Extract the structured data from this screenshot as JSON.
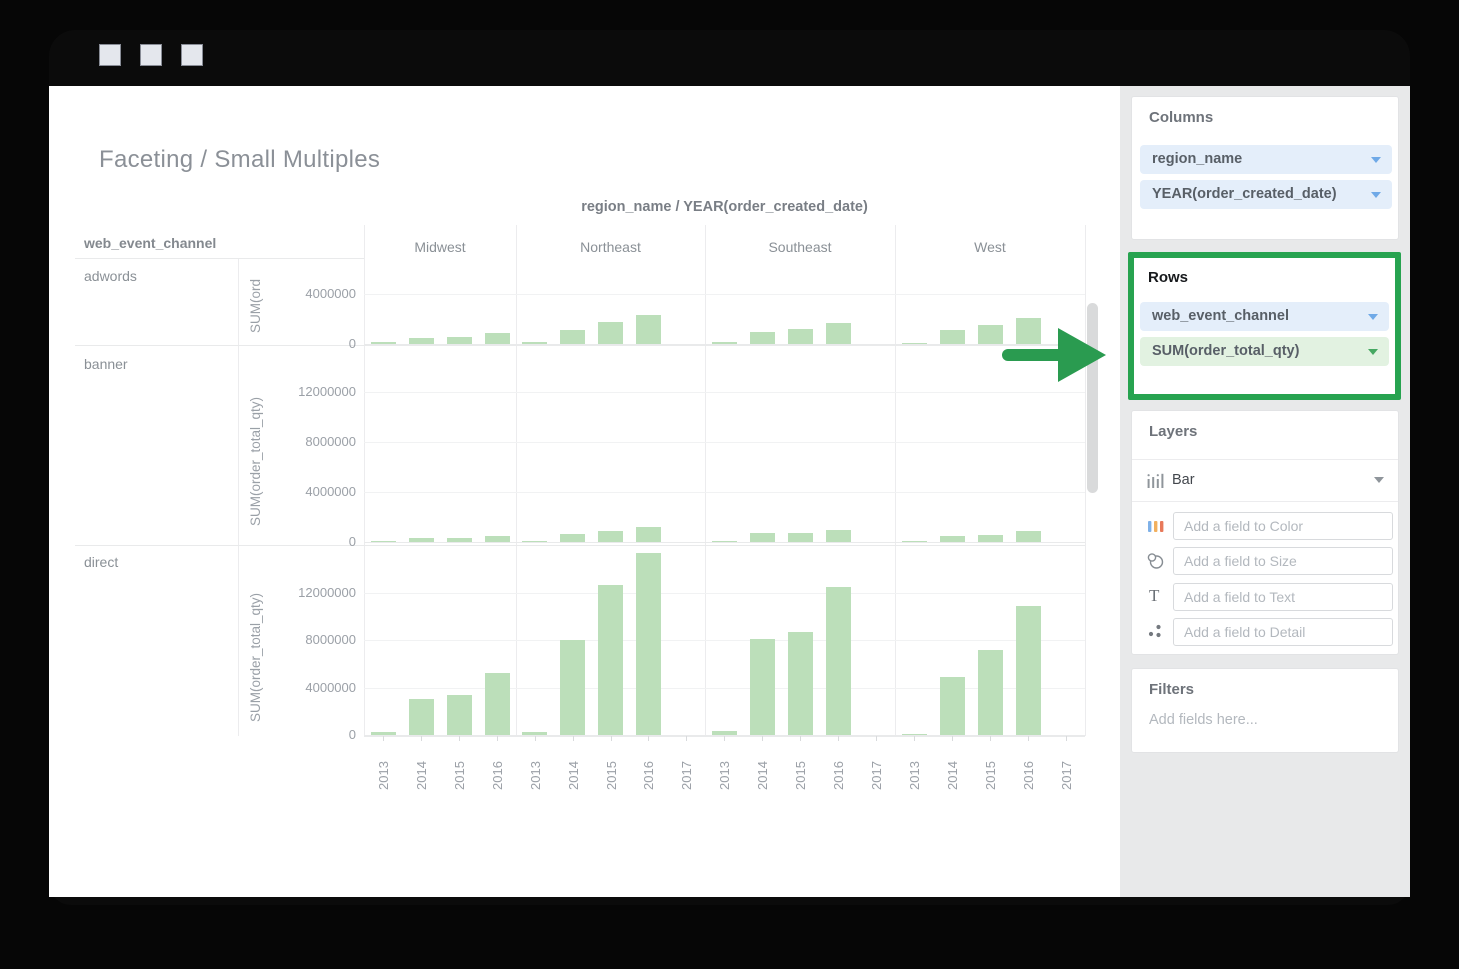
{
  "main": {
    "title": "Faceting / Small Multiples"
  },
  "chart_data": {
    "type": "bar",
    "facet_title": "region_name / YEAR(order_created_date)",
    "row_dimension": "web_event_channel",
    "bar_color": "#bcdfba",
    "legend": "none",
    "col_facets": [
      {
        "label": "Midwest",
        "years": [
          "2013",
          "2014",
          "2015",
          "2016"
        ]
      },
      {
        "label": "Northeast",
        "years": [
          "2013",
          "2014",
          "2015",
          "2016",
          "2017"
        ]
      },
      {
        "label": "Southeast",
        "years": [
          "2013",
          "2014",
          "2015",
          "2016",
          "2017"
        ]
      },
      {
        "label": "West",
        "years": [
          "2013",
          "2014",
          "2015",
          "2016",
          "2017"
        ]
      }
    ],
    "row_facets": [
      {
        "label": "adwords",
        "ylabel": "SUM(ord",
        "ticks": [
          4000000,
          0
        ],
        "ylim": [
          0,
          5000000
        ],
        "values": {
          "Midwest": [
            150000,
            500000,
            550000,
            900000
          ],
          "Northeast": [
            150000,
            1100000,
            1800000,
            2300000,
            null
          ],
          "Southeast": [
            150000,
            950000,
            1200000,
            1700000,
            null
          ],
          "West": [
            100000,
            1100000,
            1500000,
            2100000,
            null
          ]
        }
      },
      {
        "label": "banner",
        "ylabel": "SUM(order_total_qty)",
        "ticks": [
          12000000,
          8000000,
          4000000,
          0
        ],
        "ylim": [
          0,
          15500000
        ],
        "values": {
          "Midwest": [
            100000,
            300000,
            300000,
            500000
          ],
          "Northeast": [
            100000,
            650000,
            900000,
            1200000,
            null
          ],
          "Southeast": [
            100000,
            700000,
            700000,
            1000000,
            null
          ],
          "West": [
            100000,
            450000,
            600000,
            850000,
            null
          ]
        }
      },
      {
        "label": "direct",
        "ylabel": "SUM(order_total_qty)",
        "ticks": [
          12000000,
          8000000,
          4000000,
          0
        ],
        "ylim": [
          0,
          16000000
        ],
        "values": {
          "Midwest": [
            250000,
            3000000,
            3400000,
            5200000
          ],
          "Northeast": [
            250000,
            8000000,
            12600000,
            15300000,
            null
          ],
          "Southeast": [
            300000,
            8100000,
            8700000,
            12500000,
            null
          ],
          "West": [
            100000,
            4900000,
            7200000,
            10900000,
            null
          ]
        }
      }
    ]
  },
  "sidebar": {
    "columns": {
      "title": "Columns",
      "fields": [
        {
          "label": "region_name",
          "type": "dimension"
        },
        {
          "label": "YEAR(order_created_date)",
          "type": "dimension"
        }
      ]
    },
    "rows": {
      "title": "Rows",
      "fields": [
        {
          "label": "web_event_channel",
          "type": "dimension"
        },
        {
          "label": "SUM(order_total_qty)",
          "type": "measure"
        }
      ]
    },
    "layers": {
      "title": "Layers",
      "layer_type_label": "Bar",
      "slots": [
        {
          "icon": "color-swatches-icon",
          "placeholder": "Add a field to Color"
        },
        {
          "icon": "size-circles-icon",
          "placeholder": "Add a field to Size"
        },
        {
          "icon": "text-icon",
          "placeholder": "Add a field to Text"
        },
        {
          "icon": "detail-dots-icon",
          "placeholder": "Add a field to Detail"
        }
      ]
    },
    "filters": {
      "title": "Filters",
      "placeholder": "Add fields here..."
    }
  },
  "colors": {
    "highlight_green": "#27a350",
    "arrow_green": "#2a9b50",
    "bar_green": "#bcdfba",
    "pill_blue_bg": "#e4eefa",
    "pill_green_bg": "#e2f2e1",
    "caret_blue": "#6fa9e7",
    "caret_green": "#46a862",
    "sidebar_bg": "#e8e9ea"
  }
}
